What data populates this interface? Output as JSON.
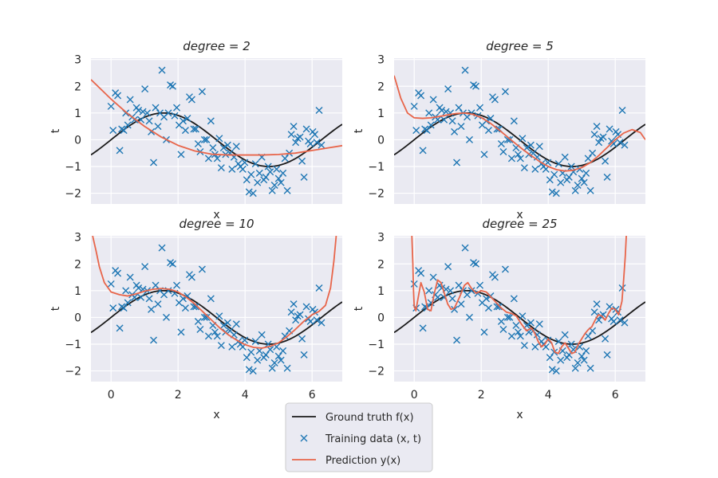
{
  "chart_data": [
    {
      "type": "line",
      "title": "degree = 2",
      "xlabel": "x",
      "ylabel": "t",
      "xlim": [
        -0.6,
        6.9
      ],
      "ylim": [
        -2.4,
        3.05
      ],
      "xticks": [
        0,
        2,
        4,
        6
      ],
      "yticks": [
        -2,
        -1,
        0,
        1,
        2,
        3
      ],
      "grid": true,
      "prediction": {
        "x": [
          -0.6,
          0.0,
          0.5,
          1.0,
          1.5,
          2.0,
          2.5,
          3.0,
          3.5,
          4.0,
          4.5,
          5.0,
          5.5,
          6.0,
          6.5,
          6.9
        ],
        "y": [
          2.25,
          1.52,
          0.97,
          0.5,
          0.1,
          -0.21,
          -0.42,
          -0.54,
          -0.57,
          -0.57,
          -0.57,
          -0.55,
          -0.5,
          -0.4,
          -0.3,
          -0.22
        ]
      }
    },
    {
      "type": "line",
      "title": "degree = 5",
      "xlabel": "x",
      "ylabel": "t",
      "xlim": [
        -0.6,
        6.9
      ],
      "ylim": [
        -2.4,
        3.05
      ],
      "xticks": [
        0,
        2,
        4,
        6
      ],
      "yticks": [
        -2,
        -1,
        0,
        1,
        2,
        3
      ],
      "grid": true,
      "prediction": {
        "x": [
          -0.6,
          -0.4,
          -0.2,
          0.0,
          0.25,
          0.5,
          0.75,
          1.0,
          1.25,
          1.5,
          1.75,
          2.0,
          2.25,
          2.5,
          2.75,
          3.0,
          3.25,
          3.5,
          3.75,
          4.0,
          4.25,
          4.5,
          4.75,
          5.0,
          5.25,
          5.5,
          5.75,
          6.0,
          6.25,
          6.5,
          6.75,
          6.9
        ],
        "y": [
          2.4,
          1.55,
          1.0,
          0.82,
          0.8,
          0.82,
          0.87,
          0.93,
          0.98,
          1.0,
          0.95,
          0.83,
          0.64,
          0.4,
          0.14,
          -0.12,
          -0.37,
          -0.6,
          -0.82,
          -1.0,
          -1.12,
          -1.17,
          -1.14,
          -1.04,
          -0.86,
          -0.6,
          -0.3,
          0.0,
          0.25,
          0.38,
          0.27,
          0.0
        ]
      }
    },
    {
      "type": "line",
      "title": "degree = 10",
      "xlabel": "x",
      "ylabel": "t",
      "xlim": [
        -0.6,
        6.9
      ],
      "ylim": [
        -2.4,
        3.05
      ],
      "xticks": [
        0,
        2,
        4,
        6
      ],
      "yticks": [
        -2,
        -1,
        0,
        1,
        2,
        3
      ],
      "grid": true,
      "prediction": {
        "x": [
          -0.55,
          -0.45,
          -0.35,
          -0.2,
          0.0,
          0.25,
          0.5,
          0.75,
          1.0,
          1.25,
          1.5,
          1.75,
          2.0,
          2.25,
          2.5,
          2.75,
          3.0,
          3.25,
          3.5,
          3.75,
          4.0,
          4.25,
          4.5,
          4.75,
          5.0,
          5.25,
          5.5,
          5.75,
          6.0,
          6.2,
          6.4,
          6.55,
          6.65,
          6.72
        ],
        "y": [
          3.05,
          2.5,
          1.9,
          1.3,
          0.95,
          0.85,
          0.8,
          0.88,
          0.98,
          1.05,
          1.08,
          1.05,
          0.95,
          0.75,
          0.5,
          0.2,
          -0.1,
          -0.4,
          -0.65,
          -0.85,
          -1.02,
          -1.12,
          -1.15,
          -1.08,
          -0.95,
          -0.72,
          -0.45,
          -0.15,
          0.1,
          0.22,
          0.45,
          1.1,
          2.1,
          3.05
        ]
      }
    },
    {
      "type": "line",
      "title": "degree = 25",
      "xlabel": "x",
      "ylabel": "t",
      "xlim": [
        -0.6,
        6.9
      ],
      "ylim": [
        -2.4,
        3.05
      ],
      "xticks": [
        0,
        2,
        4,
        6
      ],
      "yticks": [
        -2,
        -1,
        0,
        1,
        2,
        3
      ],
      "grid": true,
      "prediction": {
        "x": [
          -0.07,
          -0.04,
          -0.02,
          0.0,
          0.05,
          0.12,
          0.2,
          0.3,
          0.4,
          0.5,
          0.6,
          0.7,
          0.8,
          0.9,
          1.0,
          1.1,
          1.2,
          1.35,
          1.5,
          1.6,
          1.7,
          1.85,
          2.0,
          2.15,
          2.3,
          2.45,
          2.6,
          2.75,
          2.9,
          3.05,
          3.2,
          3.35,
          3.5,
          3.6,
          3.7,
          3.8,
          3.9,
          4.0,
          4.1,
          4.2,
          4.3,
          4.4,
          4.5,
          4.6,
          4.7,
          4.8,
          4.9,
          5.0,
          5.1,
          5.2,
          5.3,
          5.4,
          5.5,
          5.6,
          5.7,
          5.8,
          5.9,
          6.0,
          6.1,
          6.2,
          6.25,
          6.3,
          6.33
        ],
        "y": [
          3.05,
          2.0,
          1.0,
          0.4,
          0.25,
          0.75,
          1.3,
          0.95,
          0.3,
          0.25,
          0.9,
          1.4,
          1.3,
          0.9,
          0.5,
          0.3,
          0.35,
          0.75,
          1.2,
          1.3,
          1.1,
          0.9,
          1.0,
          0.95,
          0.75,
          0.55,
          0.35,
          0.2,
          0.15,
          0.05,
          -0.25,
          -0.5,
          -0.4,
          -0.6,
          -0.9,
          -1.1,
          -1.0,
          -0.8,
          -0.95,
          -1.3,
          -1.35,
          -1.1,
          -0.95,
          -1.15,
          -1.35,
          -1.3,
          -1.0,
          -0.8,
          -0.6,
          -0.45,
          -0.35,
          -0.1,
          0.1,
          0.05,
          -0.1,
          0.15,
          0.35,
          0.3,
          0.1,
          0.6,
          1.4,
          2.3,
          3.05
        ]
      }
    }
  ],
  "ground_truth": {
    "x_range": [
      -0.6,
      6.9
    ],
    "function": "sin"
  },
  "training_data": {
    "x": [
      0.0,
      0.06,
      0.13,
      0.2,
      0.26,
      0.32,
      0.38,
      0.44,
      0.5,
      0.57,
      0.63,
      0.7,
      0.76,
      0.82,
      0.89,
      0.95,
      1.01,
      1.08,
      1.14,
      1.2,
      1.27,
      1.33,
      1.4,
      1.46,
      1.52,
      1.58,
      1.65,
      1.71,
      1.77,
      1.84,
      1.9,
      1.96,
      2.03,
      2.09,
      2.15,
      2.22,
      2.28,
      2.34,
      2.41,
      2.47,
      2.53,
      2.6,
      2.66,
      2.72,
      2.79,
      2.85,
      2.91,
      2.98,
      3.04,
      3.1,
      3.17,
      3.23,
      3.29,
      3.36,
      3.42,
      3.48,
      3.55,
      3.61,
      3.67,
      3.74,
      3.8,
      3.86,
      3.93,
      3.99,
      4.05,
      4.12,
      4.18,
      4.24,
      4.31,
      4.37,
      4.43,
      4.5,
      4.56,
      4.62,
      4.69,
      4.75,
      4.81,
      4.88,
      4.94,
      5.0,
      5.07,
      5.13,
      5.19,
      5.26,
      5.32,
      5.38,
      5.45,
      5.51,
      5.57,
      5.64,
      5.7,
      5.76,
      5.83,
      5.89,
      5.95,
      6.02,
      6.08,
      6.14,
      6.21,
      6.28
    ],
    "y": [
      1.25,
      0.35,
      1.75,
      1.65,
      -0.4,
      0.4,
      0.35,
      1.0,
      0.55,
      1.5,
      0.85,
      0.75,
      1.2,
      1.1,
      0.75,
      1.05,
      1.9,
      1.0,
      0.7,
      0.3,
      -0.85,
      1.2,
      0.5,
      1.0,
      2.6,
      0.85,
      0.0,
      1.0,
      2.05,
      2.0,
      0.9,
      1.2,
      0.55,
      -0.55,
      0.7,
      0.35,
      0.8,
      1.6,
      1.5,
      0.4,
      0.4,
      -0.15,
      -0.45,
      1.8,
      0.0,
      0.0,
      -0.7,
      0.7,
      -0.3,
      -0.55,
      -0.7,
      0.05,
      -1.05,
      -0.3,
      -0.55,
      -0.2,
      -0.5,
      -1.1,
      -0.65,
      -0.25,
      -0.9,
      -1.0,
      -1.1,
      -0.85,
      -1.5,
      -1.95,
      -1.3,
      -2.0,
      -0.9,
      -1.6,
      -1.25,
      -0.65,
      -1.5,
      -1.4,
      -1.0,
      -1.2,
      -1.9,
      -1.7,
      -1.1,
      -1.45,
      -1.6,
      -1.25,
      -0.7,
      -1.9,
      -0.5,
      0.2,
      0.5,
      -0.1,
      0.05,
      0.1,
      -0.8,
      -1.4,
      0.4,
      -0.05,
      -0.15,
      0.3,
      0.2,
      -0.1,
      1.1,
      -0.2
    ]
  },
  "legend": {
    "placement": "lower-center",
    "items": [
      {
        "label": "Ground truth f(x)",
        "kind": "line",
        "color": "#1a1a1a"
      },
      {
        "label": "Training data (x, t)",
        "kind": "marker",
        "color": "#1f77b4"
      },
      {
        "label": "Prediction y(x)",
        "kind": "line",
        "color": "#e8654a"
      }
    ]
  },
  "colors": {
    "axes_background": "#eaeaf2",
    "grid": "#ffffff",
    "ground_truth": "#1a1a1a",
    "training": "#1f77b4",
    "prediction": "#e8654a"
  }
}
